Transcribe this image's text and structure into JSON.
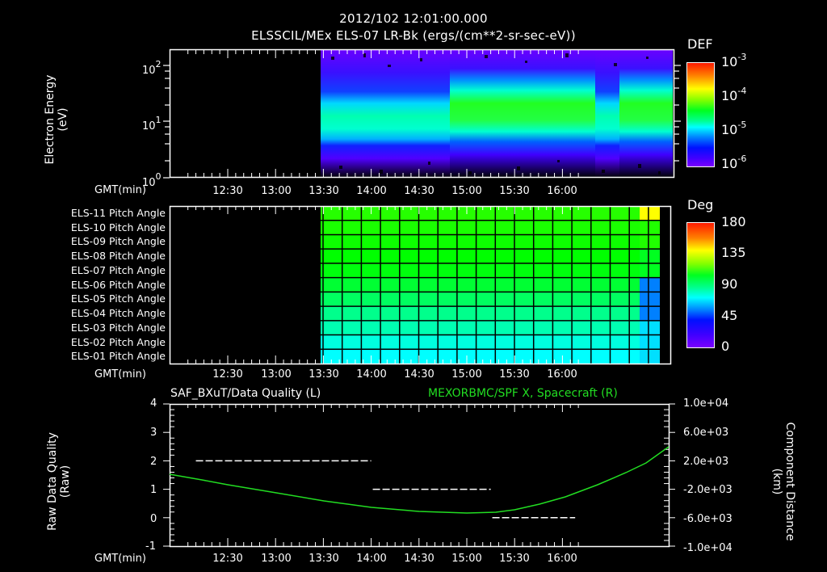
{
  "header": {
    "timestamp": "2012/102 12:01:00.000",
    "subtitle": "ELSSCIL/MEx ELS-07 LR-Bk  (ergs/(cm**2-sr-sec-eV))"
  },
  "panel1": {
    "ylabel_line1": "Electron Energy",
    "ylabel_line2": "(eV)",
    "yticks": [
      {
        "base": "10",
        "exp": "2"
      },
      {
        "base": "10",
        "exp": "1"
      },
      {
        "base": "10",
        "exp": "0"
      }
    ],
    "xaxis_label": "GMT(min)",
    "colorbar": {
      "title": "DEF",
      "ticks": [
        {
          "base": "10",
          "exp": "-3"
        },
        {
          "base": "10",
          "exp": "-4"
        },
        {
          "base": "10",
          "exp": "-5"
        },
        {
          "base": "10",
          "exp": "-6"
        }
      ]
    }
  },
  "panel2": {
    "rows": [
      "ELS-11 Pitch Angle",
      "ELS-10 Pitch Angle",
      "ELS-09 Pitch Angle",
      "ELS-08 Pitch Angle",
      "ELS-07 Pitch Angle",
      "ELS-06 Pitch Angle",
      "ELS-05 Pitch Angle",
      "ELS-04 Pitch Angle",
      "ELS-03 Pitch Angle",
      "ELS-02 Pitch Angle",
      "ELS-01 Pitch Angle"
    ],
    "xaxis_label": "GMT(min)",
    "colorbar": {
      "title": "Deg",
      "ticks": [
        "180",
        "135",
        "90",
        "45",
        "0"
      ]
    }
  },
  "panel3": {
    "title_left": "SAF_BXuT/Data Quality (L)",
    "title_right": "MEXORBMC/SPF X, Spacecraft (R)",
    "ylabel_left_line1": "Raw Data Quality",
    "ylabel_left_line2": "(Raw)",
    "ylabel_right_line1": "Component Distance",
    "ylabel_right_line2": "(km)",
    "yticks_left": [
      "4",
      "3",
      "2",
      "1",
      "0",
      "-1"
    ],
    "yticks_right": [
      "1.0e+04",
      "6.0e+03",
      "2.0e+03",
      "-2.0e+03",
      "-6.0e+03",
      "-1.0e+04"
    ],
    "xaxis_label": "GMT(min)",
    "colors": {
      "right_series": "#22dd22",
      "left_series": "#ffffff"
    }
  },
  "xticks": [
    "12:30",
    "13:00",
    "13:30",
    "14:00",
    "14:30",
    "15:00",
    "15:30",
    "16:00"
  ],
  "chart_data": [
    {
      "type": "heatmap",
      "title": "ELSSCIL/MEx ELS-07 LR-Bk (ergs/(cm**2-sr-sec-eV))",
      "xlabel": "GMT(min)",
      "ylabel": "Electron Energy (eV)",
      "yscale": "log",
      "ylim": [
        1,
        200
      ],
      "xlim": [
        "12:01",
        "16:12"
      ],
      "data_start": "13:17",
      "colorbar": {
        "label": "DEF",
        "scale": "log",
        "range": [
          1e-06,
          0.001
        ]
      },
      "description": "Spectrogram of electron differential energy flux; peak band ~5-20 eV (cyan/green ~1e-5 to 1e-4), enhanced flux after ~14:25, dip near 15:35-15:40"
    },
    {
      "type": "heatmap",
      "title": "ELS Pitch Angle",
      "xlabel": "GMT(min)",
      "categories": [
        "ELS-01",
        "ELS-02",
        "ELS-03",
        "ELS-04",
        "ELS-05",
        "ELS-06",
        "ELS-07",
        "ELS-08",
        "ELS-09",
        "ELS-10",
        "ELS-11"
      ],
      "colorbar": {
        "label": "Deg",
        "range": [
          0,
          180
        ]
      },
      "data_start": "13:17",
      "approx_values_deg": [
        60,
        65,
        72,
        78,
        85,
        92,
        98,
        100,
        102,
        104,
        106
      ],
      "description": "Pitch angles roughly constant per anode; near 16:00-16:08 lower anodes drop to ~30 deg and ELS-11 rises to ~140 deg"
    },
    {
      "type": "line",
      "title_left": "SAF_BXuT/Data Quality (L)",
      "title_right": "MEXORBMC/SPF X, Spacecraft (R)",
      "xlabel": "GMT(min)",
      "ylabel_left": "Raw Data Quality (Raw)",
      "ylabel_right": "Component Distance (km)",
      "ylim_left": [
        -1,
        4
      ],
      "ylim_right": [
        -10000,
        10000
      ],
      "series": [
        {
          "name": "Data Quality (L)",
          "axis": "left",
          "style": "dashed",
          "x": [
            "12:10",
            "14:00",
            "14:01",
            "15:15",
            "15:16",
            "16:08"
          ],
          "values": [
            2,
            2,
            1,
            1,
            0,
            0
          ]
        },
        {
          "name": "SPF X, Spacecraft (R)",
          "axis": "right",
          "style": "solid",
          "x": [
            "12:01",
            "12:30",
            "13:00",
            "13:30",
            "14:00",
            "14:30",
            "15:00",
            "15:15",
            "15:30",
            "15:45",
            "16:00",
            "16:12"
          ],
          "values": [
            200,
            -800,
            -1900,
            -3000,
            -4000,
            -4700,
            -4800,
            -4400,
            -3500,
            -1800,
            600,
            700
          ]
        }
      ]
    }
  ]
}
